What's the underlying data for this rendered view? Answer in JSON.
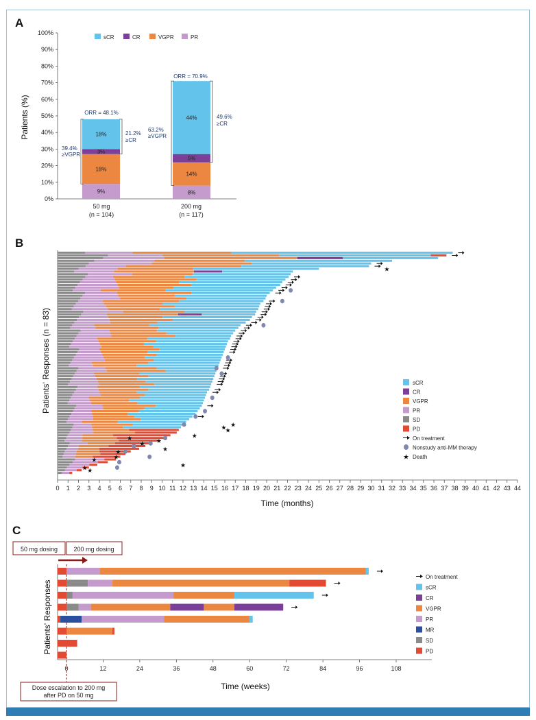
{
  "palette": {
    "sCR": "#63c3ea",
    "CR": "#7b3f99",
    "VGPR": "#ec8742",
    "PR": "#c49bcc",
    "SD": "#8a8a8a",
    "PD": "#e24a33",
    "MR": "#2b4f9f",
    "annot": "#1f3a6b",
    "box": "#8b1a1a",
    "footer": "#2f7db5"
  },
  "panelA": {
    "label": "A",
    "ylabel": "Patients (%)",
    "yticks": [
      "0%",
      "10%",
      "20%",
      "30%",
      "40%",
      "50%",
      "60%",
      "70%",
      "80%",
      "90%",
      "100%"
    ],
    "legend": [
      "sCR",
      "CR",
      "VGPR",
      "PR"
    ],
    "groups": [
      {
        "name": "50 mg",
        "n": "(n = 104)",
        "orr": "ORR = 48.1%",
        "left_note": [
          "39.4%",
          "≥VGPR"
        ],
        "right_note": [
          "21.2%",
          "≥CR"
        ]
      },
      {
        "name": "200 mg",
        "n": "(n = 117)",
        "orr": "ORR = 70.9%",
        "left_note": [
          "63.2%",
          "≥VGPR"
        ],
        "right_note": [
          "49.6%",
          "≥CR"
        ]
      }
    ]
  },
  "chart_data": [
    {
      "type": "bar",
      "stacked": true,
      "categories": [
        "50 mg (n = 104)",
        "200 mg (n = 117)"
      ],
      "series": [
        {
          "name": "PR",
          "values": [
            9,
            8
          ],
          "labels": [
            "9%",
            "8%"
          ]
        },
        {
          "name": "VGPR",
          "values": [
            18,
            14
          ],
          "labels": [
            "18%",
            "14%"
          ]
        },
        {
          "name": "CR",
          "values": [
            3,
            5
          ],
          "labels": [
            "3%",
            "5%"
          ]
        },
        {
          "name": "sCR",
          "values": [
            18,
            44
          ],
          "labels": [
            "18%",
            "44%"
          ]
        }
      ],
      "ylabel": "Patients (%)",
      "ylim": [
        0,
        100
      ]
    },
    {
      "type": "bar",
      "orientation": "horizontal",
      "subtype": "swimmer",
      "ylabel": "Patients' Responses (n = 83)",
      "xlabel": "Time (months)",
      "xlim": [
        0,
        44
      ],
      "categories": [
        "sCR",
        "CR",
        "VGPR",
        "PR",
        "SD",
        "PD"
      ],
      "marker_legend": [
        "On treatment",
        "Nonstudy anti-MM therapy",
        "Death"
      ],
      "n_patients": 83,
      "end_points_months": [
        37.8,
        37.2,
        36.4,
        32.0,
        30.0,
        29.8,
        25.0,
        22.5,
        22.3,
        22.1,
        21.8,
        21.5,
        21.3,
        20.9,
        20.6,
        20.3,
        20.0,
        19.9,
        19.7,
        19.4,
        19.3,
        19.2,
        19.0,
        18.9,
        18.6,
        18.4,
        18.0,
        17.5,
        17.3,
        17.0,
        16.8,
        16.6,
        16.5,
        16.3,
        16.2,
        16.1,
        16.0,
        15.9,
        15.8,
        15.7,
        15.6,
        15.5,
        15.4,
        15.3,
        15.2,
        15.1,
        15.0,
        14.9,
        14.8,
        14.7,
        14.6,
        14.5,
        14.3,
        14.2,
        14.1,
        14.0,
        13.9,
        13.8,
        13.6,
        13.4,
        13.2,
        12.9,
        12.6,
        12.3,
        12.0,
        11.8,
        11.6,
        11.4,
        10.8,
        10.3,
        9.6,
        9.0,
        8.4,
        7.8,
        7.0,
        6.5,
        6.0,
        5.6,
        4.8,
        3.8,
        3.0,
        2.3,
        1.4
      ],
      "arrow_rows": [
        1,
        2,
        5,
        6,
        10,
        11,
        12,
        13,
        14,
        15,
        16,
        19,
        20,
        21,
        22,
        23,
        24,
        25,
        26,
        27,
        28,
        29,
        30,
        31,
        32,
        33,
        34,
        35,
        36,
        37,
        38,
        41,
        42,
        43,
        44,
        46,
        47,
        48,
        49,
        50,
        52,
        53,
        58,
        62
      ],
      "death_rows": [
        7,
        57,
        58,
        59,
        62,
        63,
        64,
        65,
        66,
        69,
        71,
        72,
        74,
        75,
        76,
        77,
        78,
        79,
        80,
        81,
        82,
        83
      ]
    },
    {
      "type": "bar",
      "orientation": "horizontal",
      "subtype": "swimmer",
      "ylabel": "Patients' Responses",
      "xlabel": "Time (weeks)",
      "xlim": [
        0,
        120
      ],
      "xticks": [
        0,
        12,
        24,
        36,
        48,
        60,
        72,
        84,
        96,
        108
      ],
      "dose_boxes": [
        "50 mg dosing",
        "200 mg dosing"
      ],
      "footnote": [
        "Dose escalation to 200 mg",
        "after PD on 50 mg"
      ],
      "legend": [
        "On treatment",
        "sCR",
        "CR",
        "VGPR",
        "PR",
        "MR",
        "SD",
        "PD"
      ],
      "patients": [
        {
          "segments": [
            [
              "PD",
              0,
              3
            ],
            [
              "PR",
              3,
              14
            ],
            [
              "VGPR",
              14,
              101
            ],
            [
              "sCR",
              101,
              102
            ]
          ],
          "on_treatment": true
        },
        {
          "segments": [
            [
              "PD",
              0,
              3
            ],
            [
              "SD",
              3,
              10
            ],
            [
              "PR",
              10,
              18
            ],
            [
              "VGPR",
              18,
              76
            ],
            [
              "PD",
              76,
              88
            ]
          ],
          "on_treatment": true
        },
        {
          "segments": [
            [
              "PD",
              0,
              3
            ],
            [
              "SD",
              3,
              5
            ],
            [
              "PR",
              5,
              38
            ],
            [
              "VGPR",
              38,
              58
            ],
            [
              "sCR",
              58,
              84
            ]
          ],
          "on_treatment": true
        },
        {
          "segments": [
            [
              "PD",
              0,
              3
            ],
            [
              "SD",
              3,
              7
            ],
            [
              "PR",
              7,
              11
            ],
            [
              "VGPR",
              11,
              37
            ],
            [
              "CR",
              37,
              48
            ],
            [
              "VGPR",
              48,
              58
            ],
            [
              "CR",
              58,
              74
            ]
          ],
          "on_treatment": true
        },
        {
          "segments": [
            [
              "PD",
              0,
              1
            ],
            [
              "MR",
              1,
              8
            ],
            [
              "PR",
              8,
              35
            ],
            [
              "VGPR",
              35,
              63
            ],
            [
              "sCR",
              63,
              64
            ]
          ],
          "on_treatment": false
        },
        {
          "segments": [
            [
              "PD",
              0,
              3
            ],
            [
              "VGPR",
              3,
              18
            ],
            [
              "PD",
              18,
              18.7
            ]
          ],
          "on_treatment": false
        },
        {
          "segments": [
            [
              "PD",
              0,
              6.5
            ]
          ],
          "on_treatment": false
        },
        {
          "segments": [
            [
              "PD",
              0,
              3
            ]
          ],
          "on_treatment": false
        }
      ]
    }
  ],
  "panelB": {
    "label": "B",
    "ylabel": "Patients' Responses (n = 83)",
    "xlabel": "Time (months)",
    "legend": [
      "sCR",
      "CR",
      "VGPR",
      "PR",
      "SD",
      "PD",
      "On treatment",
      "Nonstudy anti-MM therapy",
      "Death"
    ]
  },
  "panelC": {
    "label": "C",
    "ylabel": "Patients' Responses",
    "xlabel": "Time (weeks)",
    "box50": "50 mg dosing",
    "box200": "200 mg dosing",
    "note1": "Dose escalation to 200 mg",
    "note2": "after PD on 50 mg",
    "legend": [
      "On treatment",
      "sCR",
      "CR",
      "VGPR",
      "PR",
      "MR",
      "SD",
      "PD"
    ]
  }
}
